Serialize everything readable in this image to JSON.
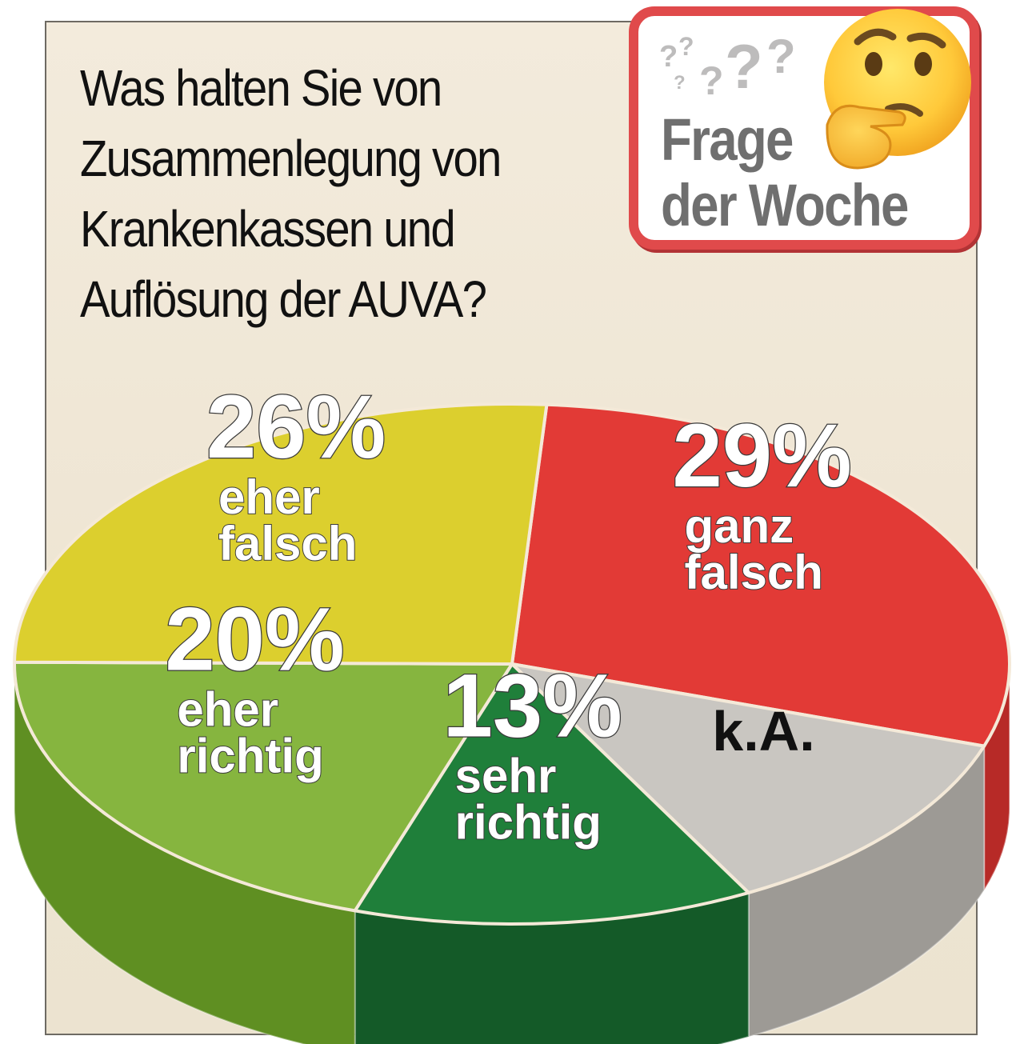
{
  "question": "Was halten Sie von Zusammenlegung von Krankenkassen und Auflösung der AUVA?",
  "badge": {
    "line1": "Frage",
    "line2": "der Woche",
    "question_marks": "? ? ? ? ? ?",
    "emoji": "thinking-face-icon",
    "border_color": "#e04a4b"
  },
  "chart_data": {
    "type": "pie",
    "style": "3d",
    "start_angle_deg": 274,
    "slices": [
      {
        "label": "ganz falsch",
        "line1": "ganz",
        "line2": "falsch",
        "value": 29,
        "value_label": "29%",
        "color": "#e23a36",
        "side_color": "#b72a27"
      },
      {
        "label": "k.A.",
        "line1": "k.A.",
        "line2": "",
        "value": 12,
        "value_label": "",
        "color": "#c9c6c1",
        "side_color": "#9d9a95"
      },
      {
        "label": "sehr richtig",
        "line1": "sehr",
        "line2": "richtig",
        "value": 13,
        "value_label": "13%",
        "color": "#1f7f3a",
        "side_color": "#145a28"
      },
      {
        "label": "eher richtig",
        "line1": "eher",
        "line2": "richtig",
        "value": 20,
        "value_label": "20%",
        "color": "#86b53f",
        "side_color": "#5f8f22"
      },
      {
        "label": "eher falsch",
        "line1": "eher",
        "line2": "falsch",
        "value": 26,
        "value_label": "26%",
        "color": "#dccf2e",
        "side_color": "#a89c16"
      }
    ]
  }
}
